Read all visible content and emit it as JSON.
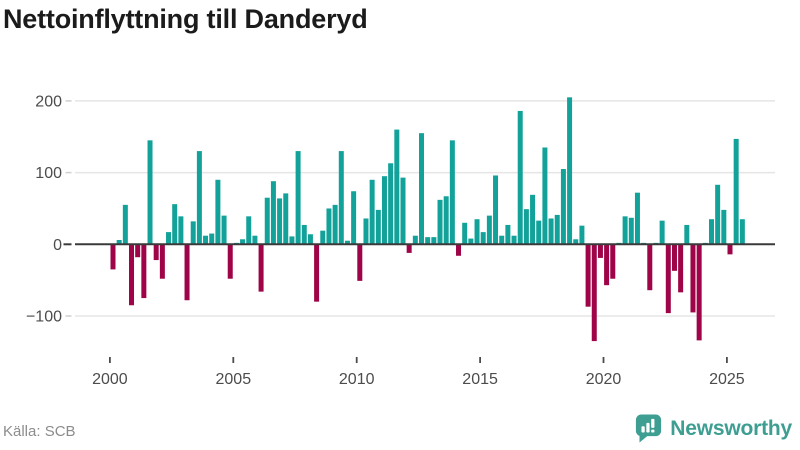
{
  "title": "Nettoinflyttning till Danderyd",
  "source": "Källa: SCB",
  "brand": {
    "name": "Newsworthy",
    "color": "#3E9E92"
  },
  "chart_data": {
    "type": "bar",
    "title": "Nettoinflyttning till Danderyd",
    "xlabel": "",
    "ylabel": "",
    "x_unit": "quarter",
    "start": "2000Q1",
    "end": "2025Q3",
    "series": [
      {
        "name": "Nettoinflyttning",
        "values": [
          -35,
          6,
          55,
          -85,
          -18,
          -75,
          145,
          -22,
          -48,
          17,
          56,
          39,
          -78,
          32,
          130,
          12,
          15,
          90,
          40,
          -48,
          2,
          7,
          39,
          12,
          -66,
          65,
          88,
          64,
          71,
          11,
          130,
          27,
          14,
          -80,
          19,
          50,
          55,
          130,
          5,
          74,
          -51,
          36,
          90,
          48,
          95,
          113,
          160,
          93,
          -12,
          12,
          155,
          10,
          10,
          62,
          67,
          145,
          -16,
          30,
          8,
          35,
          17,
          40,
          96,
          12,
          27,
          12,
          186,
          49,
          69,
          33,
          135,
          36,
          41,
          105,
          205,
          7,
          26,
          -87,
          -135,
          -19,
          -57,
          -48,
          2,
          39,
          37,
          72,
          2,
          -64,
          2,
          33,
          -96,
          -37,
          -67,
          27,
          -95,
          -134,
          2,
          35,
          83,
          48,
          -14,
          147,
          35
        ]
      }
    ],
    "xticks": [
      {
        "value": 2000,
        "label": "2000"
      },
      {
        "value": 2005,
        "label": "2005"
      },
      {
        "value": 2010,
        "label": "2010"
      },
      {
        "value": 2015,
        "label": "2015"
      },
      {
        "value": 2020,
        "label": "2020"
      },
      {
        "value": 2025,
        "label": "2025"
      }
    ],
    "yticks": [
      {
        "value": 200,
        "label": "200"
      },
      {
        "value": 100,
        "label": "100"
      },
      {
        "value": 0,
        "label": "0"
      },
      {
        "value": -100,
        "label": "−100"
      }
    ],
    "ylim": [
      -150,
      215
    ],
    "grid": true,
    "legend": "none",
    "colors": {
      "positive": "#13A29A",
      "negative": "#9E0447",
      "grid": "#E5E5E5",
      "axis": "#3A3A3A",
      "tick_label": "#4C4C4C"
    }
  }
}
